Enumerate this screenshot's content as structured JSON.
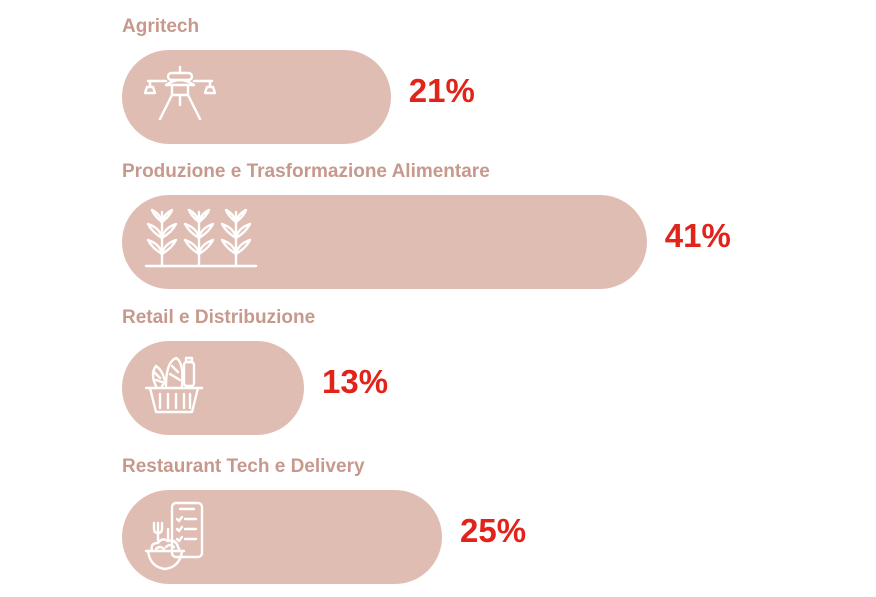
{
  "colors": {
    "bar": "#dfbdb3",
    "label": "#c7998d",
    "value": "#e2231a",
    "icon": "#ffffff"
  },
  "chart_data": {
    "type": "bar",
    "orientation": "horizontal",
    "categories": [
      "Agritech",
      "Produzione e Trasformazione Alimentare",
      "Retail e Distribuzione",
      "Restaurant Tech e Delivery"
    ],
    "values": [
      21,
      41,
      13,
      25
    ],
    "value_labels": [
      "21%",
      "41%",
      "13%",
      "25%"
    ],
    "icons": [
      "drone-icon",
      "crops-icon",
      "grocery-basket-icon",
      "phone-delivery-icon"
    ],
    "unit": "%",
    "title": "",
    "xlabel": "",
    "ylabel": ""
  }
}
